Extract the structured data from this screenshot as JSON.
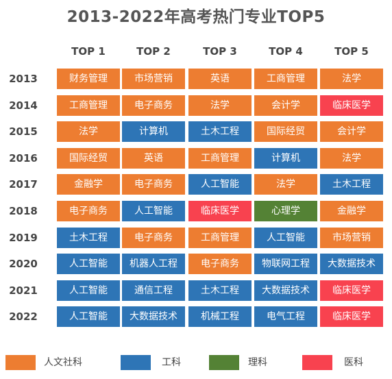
{
  "chart_data": {
    "type": "table",
    "title": "2013-2022年高考热门专业TOP5",
    "columns": [
      "TOP 1",
      "TOP 2",
      "TOP 3",
      "TOP 4",
      "TOP 5"
    ],
    "rows": [
      {
        "year": "2013",
        "cells": [
          [
            "财务管理",
            "hum"
          ],
          [
            "市场营销",
            "hum"
          ],
          [
            "英语",
            "hum"
          ],
          [
            "工商管理",
            "hum"
          ],
          [
            "法学",
            "hum"
          ]
        ]
      },
      {
        "year": "2014",
        "cells": [
          [
            "工商管理",
            "hum"
          ],
          [
            "电子商务",
            "hum"
          ],
          [
            "法学",
            "hum"
          ],
          [
            "会计学",
            "hum"
          ],
          [
            "临床医学",
            "med"
          ]
        ]
      },
      {
        "year": "2015",
        "cells": [
          [
            "法学",
            "hum"
          ],
          [
            "计算机",
            "eng"
          ],
          [
            "土木工程",
            "eng"
          ],
          [
            "国际经贸",
            "hum"
          ],
          [
            "会计学",
            "hum"
          ]
        ]
      },
      {
        "year": "2016",
        "cells": [
          [
            "国际经贸",
            "hum"
          ],
          [
            "英语",
            "hum"
          ],
          [
            "工商管理",
            "hum"
          ],
          [
            "计算机",
            "eng"
          ],
          [
            "法学",
            "hum"
          ]
        ]
      },
      {
        "year": "2017",
        "cells": [
          [
            "金融学",
            "hum"
          ],
          [
            "电子商务",
            "hum"
          ],
          [
            "人工智能",
            "eng"
          ],
          [
            "法学",
            "hum"
          ],
          [
            "土木工程",
            "eng"
          ]
        ]
      },
      {
        "year": "2018",
        "cells": [
          [
            "电子商务",
            "hum"
          ],
          [
            "人工智能",
            "eng"
          ],
          [
            "临床医学",
            "med"
          ],
          [
            "心理学",
            "sci"
          ],
          [
            "金融学",
            "hum"
          ]
        ]
      },
      {
        "year": "2019",
        "cells": [
          [
            "土木工程",
            "eng"
          ],
          [
            "电子商务",
            "hum"
          ],
          [
            "工商管理",
            "hum"
          ],
          [
            "人工智能",
            "eng"
          ],
          [
            "市场营销",
            "hum"
          ]
        ]
      },
      {
        "year": "2020",
        "cells": [
          [
            "人工智能",
            "eng"
          ],
          [
            "机器人工程",
            "eng"
          ],
          [
            "电子商务",
            "hum"
          ],
          [
            "物联网工程",
            "eng"
          ],
          [
            "大数据技术",
            "eng"
          ]
        ]
      },
      {
        "year": "2021",
        "cells": [
          [
            "人工智能",
            "eng"
          ],
          [
            "通信工程",
            "eng"
          ],
          [
            "土木工程",
            "eng"
          ],
          [
            "大数据技术",
            "eng"
          ],
          [
            "临床医学",
            "med"
          ]
        ]
      },
      {
        "year": "2022",
        "cells": [
          [
            "人工智能",
            "eng"
          ],
          [
            "大数据技术",
            "eng"
          ],
          [
            "机械工程",
            "eng"
          ],
          [
            "电气工程",
            "eng"
          ],
          [
            "临床医学",
            "med"
          ]
        ]
      }
    ],
    "legend": [
      {
        "key": "hum",
        "label": "人文社科",
        "color": "#ED7D31"
      },
      {
        "key": "eng",
        "label": "工科",
        "color": "#2E75B6"
      },
      {
        "key": "sci",
        "label": "理科",
        "color": "#548235"
      },
      {
        "key": "med",
        "label": "医科",
        "color": "#F8424F"
      }
    ],
    "legend_placement": "bottom"
  }
}
